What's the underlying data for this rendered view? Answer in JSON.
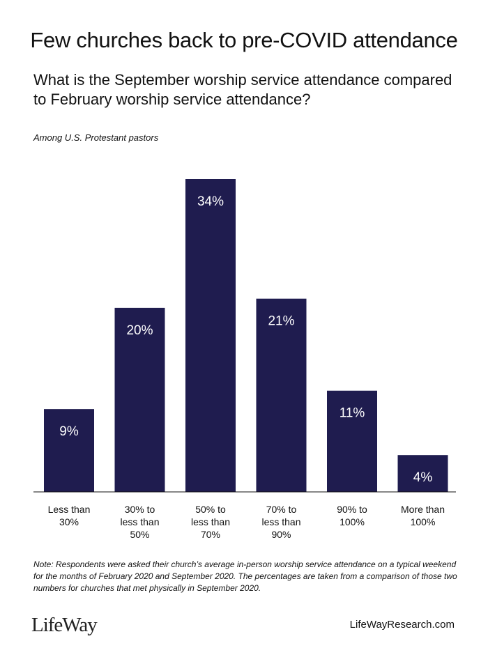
{
  "title": "Few churches back to pre-COVID attendance",
  "subtitle": "What is the September worship service attendance compared to February worship service attendance?",
  "population": "Among U.S. Protestant pastors",
  "note": "Note: Respondents were asked their church’s average in-person worship service attendance on a typical weekend for the months of February 2020 and September 2020. The percentages are taken from a comparison of those two numbers for churches that met physically in September 2020.",
  "logo": "LifeWay",
  "website": "LifeWayResearch.com",
  "colors": {
    "bar": "#1f1c4f",
    "bar_label": "#ffffff",
    "baseline": "#111111"
  },
  "chart_data": {
    "type": "bar",
    "categories": [
      "Less than\n30%",
      "30% to\nless than\n50%",
      "50% to\nless than\n70%",
      "70% to\nless than\n90%",
      "90% to\n100%",
      "More than\n100%"
    ],
    "values": [
      9,
      20,
      34,
      21,
      11,
      4
    ],
    "value_labels": [
      "9%",
      "20%",
      "34%",
      "21%",
      "11%",
      "4%"
    ],
    "unit": "%",
    "ylim": [
      0,
      34
    ],
    "grid": false,
    "legend": "none"
  }
}
